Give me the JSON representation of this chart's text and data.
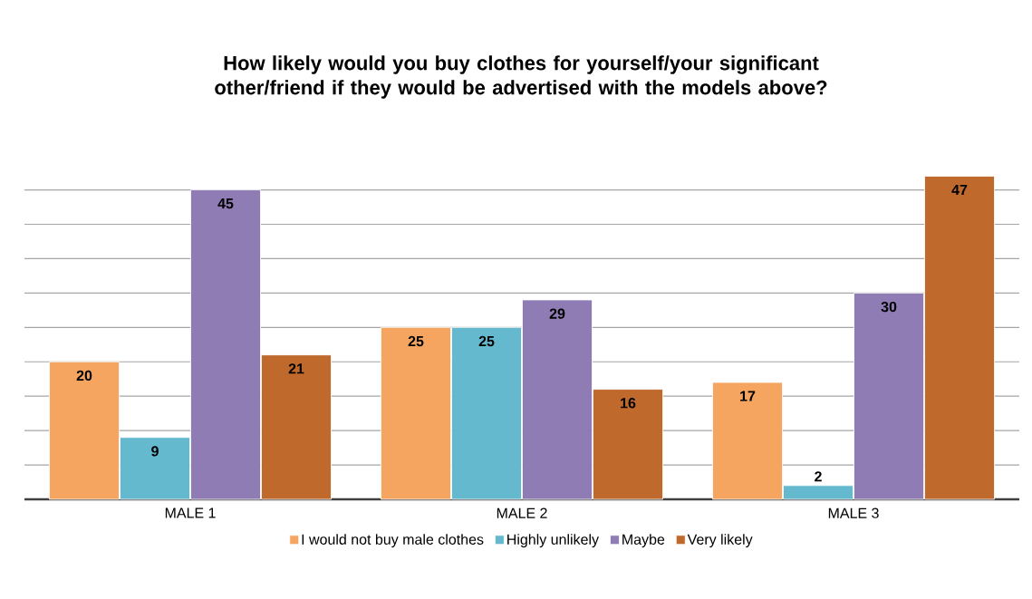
{
  "chart_data": {
    "type": "bar",
    "title": "How likely would you buy clothes for yourself/your significant other/friend if they would be advertised with the models above?",
    "categories": [
      "MALE 1",
      "MALE 2",
      "MALE 3"
    ],
    "series": [
      {
        "name": "I would not buy male clothes",
        "color": "#f5a55f",
        "values": [
          20,
          25,
          17
        ]
      },
      {
        "name": "Highly unlikely",
        "color": "#65b9cf",
        "values": [
          9,
          25,
          2
        ]
      },
      {
        "name": "Maybe",
        "color": "#8f7cb4",
        "values": [
          45,
          29,
          30
        ]
      },
      {
        "name": "Very likely",
        "color": "#c0692c",
        "values": [
          21,
          16,
          47
        ]
      }
    ],
    "tick_labels": "x",
    "grid": "y",
    "legend": "bottom",
    "data_labels": true
  }
}
